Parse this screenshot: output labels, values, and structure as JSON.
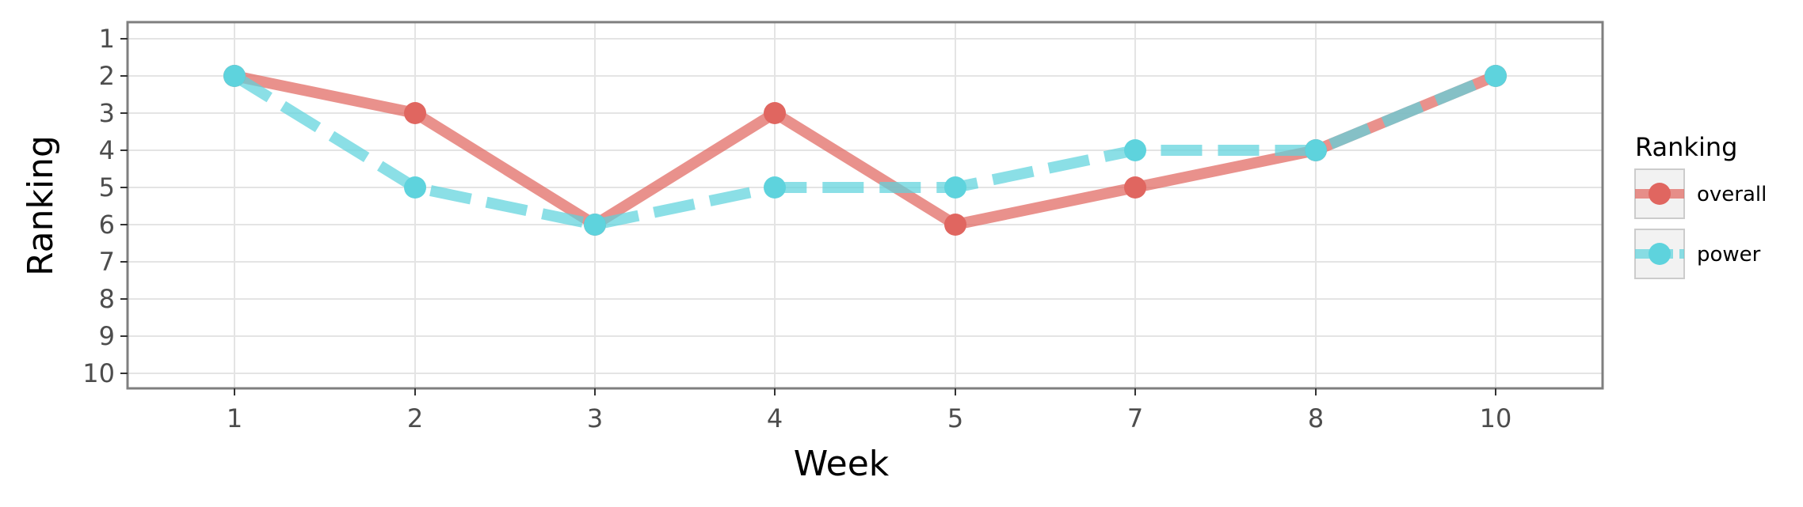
{
  "chart_data": {
    "type": "line",
    "xlabel": "Week",
    "ylabel": "Ranking",
    "x_categories": [
      "1",
      "2",
      "3",
      "4",
      "5",
      "7",
      "8",
      "10"
    ],
    "y_ticks": [
      1,
      2,
      3,
      4,
      5,
      6,
      7,
      8,
      9,
      10
    ],
    "ylim": [
      1,
      10
    ],
    "y_reversed": true,
    "grid": true,
    "legend": {
      "title": "Ranking",
      "placement": "right"
    },
    "series": [
      {
        "name": "overall",
        "values": [
          2,
          3,
          6,
          3,
          6,
          5,
          4,
          2
        ],
        "color": "#e06660",
        "line_style": "solid"
      },
      {
        "name": "power",
        "values": [
          2,
          5,
          6,
          5,
          5,
          4,
          4,
          2
        ],
        "color": "#5ed3dd",
        "line_style": "dashed"
      }
    ]
  }
}
